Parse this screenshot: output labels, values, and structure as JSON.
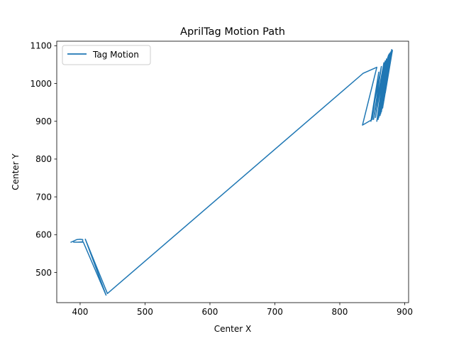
{
  "chart_data": {
    "type": "line",
    "title": "AprilTag Motion Path",
    "xlabel": "Center X",
    "ylabel": "Center Y",
    "xlim": [
      364,
      906
    ],
    "ylim": [
      420,
      1112
    ],
    "xticks": [
      400,
      500,
      600,
      700,
      800,
      900
    ],
    "yticks": [
      500,
      600,
      700,
      800,
      900,
      1000,
      1100
    ],
    "grid": false,
    "legend_position": "top-left",
    "colors": {
      "series": "#1f77b4"
    },
    "series": [
      {
        "name": "Tag Motion",
        "points": [
          [
            386,
            580
          ],
          [
            390,
            583
          ],
          [
            395,
            587
          ],
          [
            400,
            588
          ],
          [
            404,
            587
          ],
          [
            404,
            581
          ],
          [
            396,
            580
          ],
          [
            390,
            580
          ],
          [
            405,
            580
          ],
          [
            440,
            440
          ],
          [
            408,
            588
          ],
          [
            442,
            444
          ],
          [
            836,
            1027
          ],
          [
            857,
            1043
          ],
          [
            835,
            890
          ],
          [
            850,
            905
          ],
          [
            860,
            1030
          ],
          [
            848,
            900
          ],
          [
            864,
            1045
          ],
          [
            852,
            905
          ],
          [
            868,
            1055
          ],
          [
            855,
            910
          ],
          [
            870,
            1060
          ],
          [
            857,
            900
          ],
          [
            872,
            1065
          ],
          [
            859,
            905
          ],
          [
            874,
            1070
          ],
          [
            860,
            910
          ],
          [
            875,
            1075
          ],
          [
            862,
            915
          ],
          [
            876,
            1078
          ],
          [
            863,
            920
          ],
          [
            877,
            1080
          ],
          [
            864,
            925
          ],
          [
            878,
            1082
          ],
          [
            866,
            935
          ],
          [
            879,
            1084
          ],
          [
            867,
            945
          ],
          [
            880,
            1086
          ],
          [
            868,
            955
          ],
          [
            879,
            1085
          ],
          [
            869,
            965
          ],
          [
            880,
            1088
          ],
          [
            870,
            975
          ],
          [
            881,
            1087
          ],
          [
            870,
            985
          ],
          [
            880,
            1090
          ],
          [
            871,
            995
          ],
          [
            881,
            1088
          ],
          [
            872,
            1005
          ],
          [
            880,
            1089
          ],
          [
            872,
            1015
          ],
          [
            881,
            1086
          ],
          [
            873,
            1025
          ],
          [
            880,
            1088
          ],
          [
            874,
            1035
          ],
          [
            879,
            1080
          ],
          [
            875,
            1050
          ],
          [
            880,
            1085
          ],
          [
            876,
            1070
          ],
          [
            880,
            1087
          ]
        ]
      }
    ]
  }
}
